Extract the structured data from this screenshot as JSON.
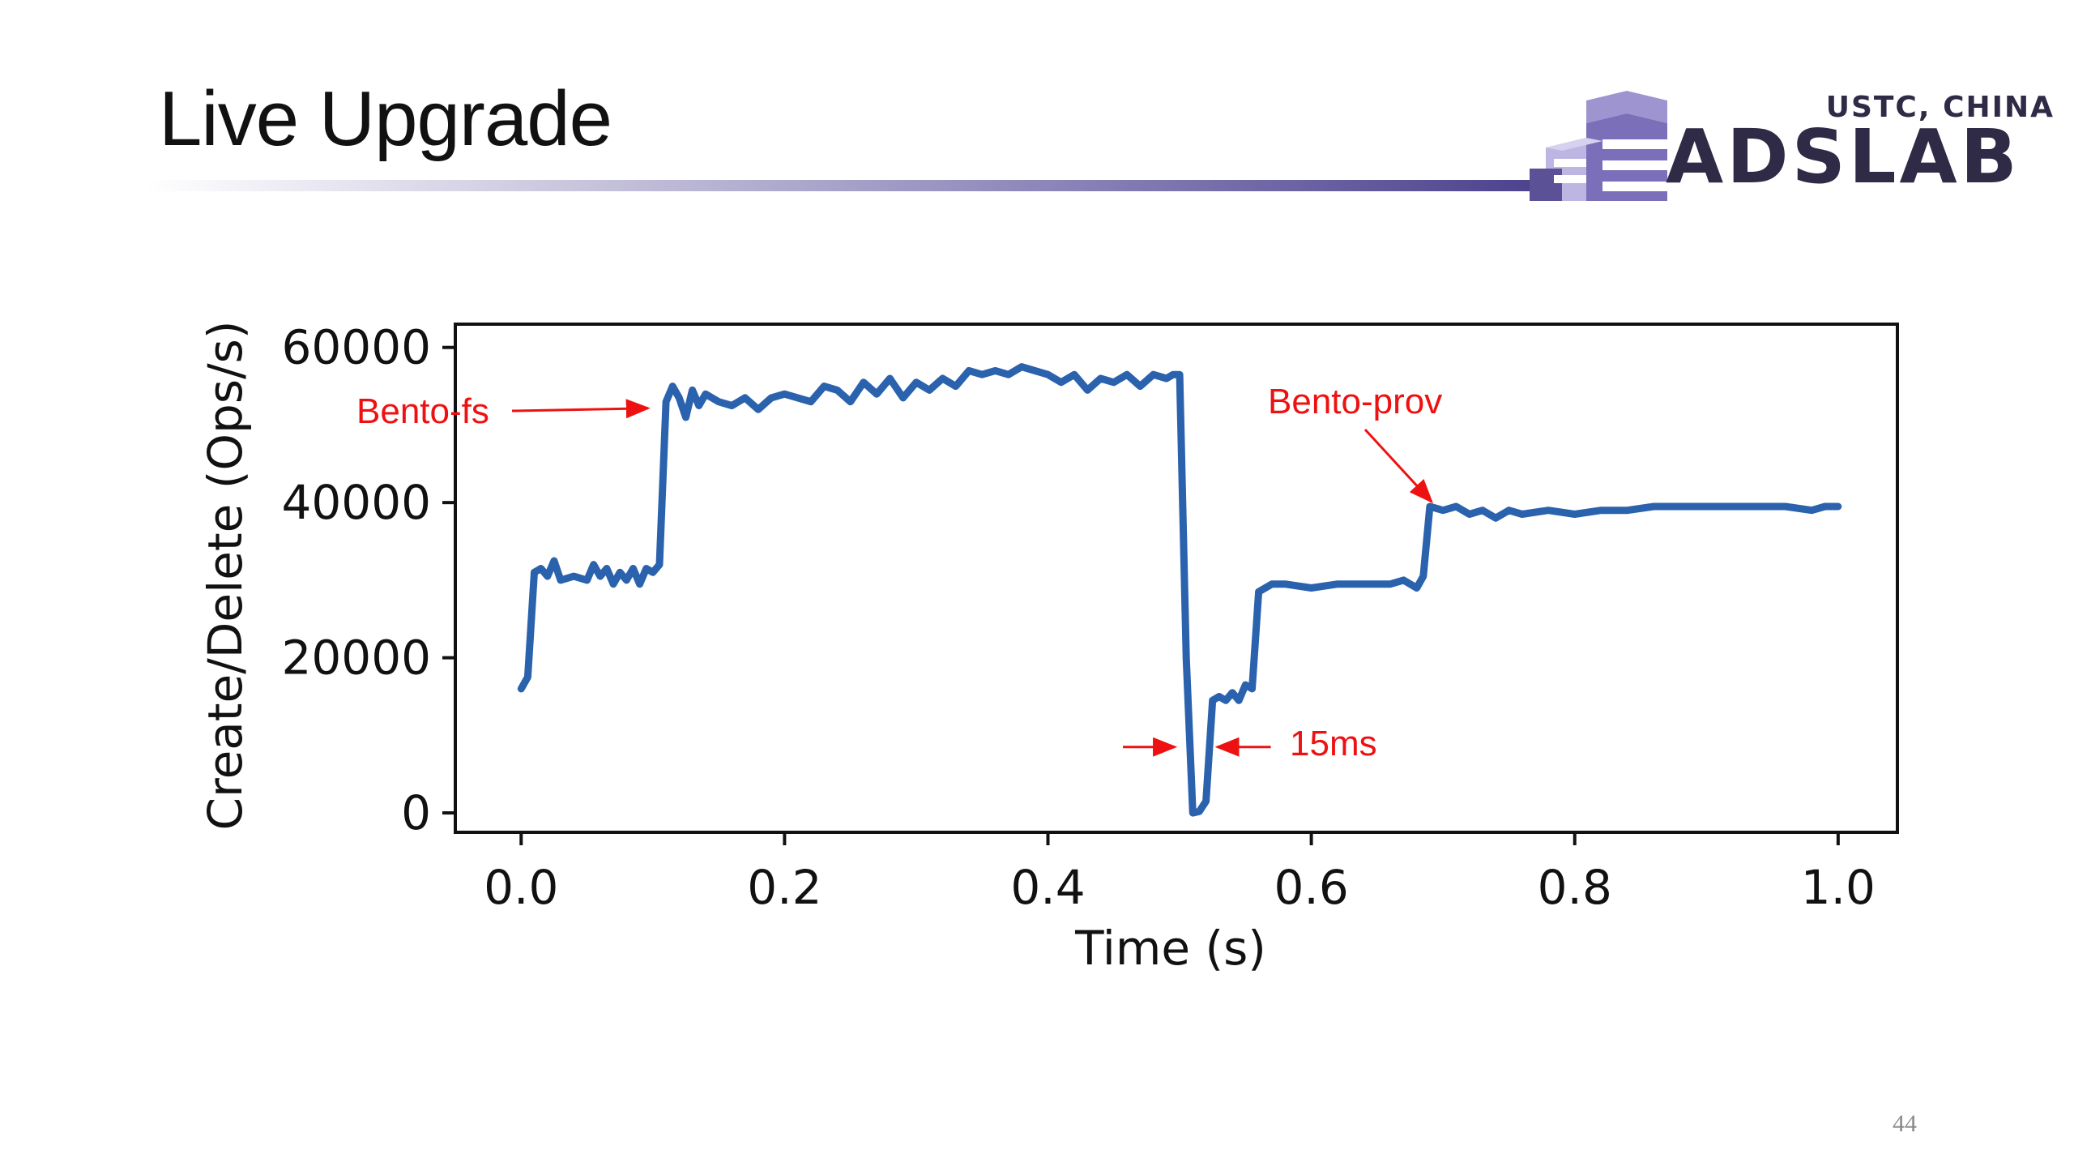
{
  "slide": {
    "title": "Live Upgrade",
    "page_number": "44",
    "logo": {
      "caption": "USTC, CHINA",
      "wordmark": "ADSLAB"
    }
  },
  "colors": {
    "line": "#2b62ad",
    "annotation": "#ee1111",
    "title_rule_end": "#4a3f8c",
    "logo": "#2f2a45"
  },
  "chart_data": {
    "type": "line",
    "title": "",
    "xlabel": "Time (s)",
    "ylabel": "Create/Delete (Ops/s)",
    "xlim": [
      -0.05,
      1.045
    ],
    "ylim": [
      -2500,
      63000
    ],
    "xticks": [
      0.0,
      0.2,
      0.4,
      0.6,
      0.8,
      1.0
    ],
    "xtick_labels": [
      "0.0",
      "0.2",
      "0.4",
      "0.6",
      "0.8",
      "1.0"
    ],
    "yticks": [
      0,
      20000,
      40000,
      60000
    ],
    "ytick_labels": [
      "0",
      "20000",
      "40000",
      "60000"
    ],
    "grid": false,
    "legend": "none",
    "series": [
      {
        "x": [
          0.0,
          0.005,
          0.01,
          0.015,
          0.02,
          0.025,
          0.03,
          0.04,
          0.05,
          0.055,
          0.06,
          0.065,
          0.07,
          0.075,
          0.08,
          0.085,
          0.09,
          0.095,
          0.1,
          0.105,
          0.11,
          0.115,
          0.12,
          0.125,
          0.13,
          0.135,
          0.14,
          0.15,
          0.16,
          0.17,
          0.18,
          0.19,
          0.2,
          0.21,
          0.22,
          0.23,
          0.24,
          0.25,
          0.26,
          0.27,
          0.28,
          0.29,
          0.3,
          0.31,
          0.32,
          0.33,
          0.34,
          0.35,
          0.36,
          0.37,
          0.38,
          0.39,
          0.4,
          0.41,
          0.42,
          0.43,
          0.44,
          0.45,
          0.46,
          0.47,
          0.48,
          0.49,
          0.495,
          0.5,
          0.505,
          0.51,
          0.515,
          0.52,
          0.525,
          0.53,
          0.535,
          0.54,
          0.545,
          0.55,
          0.555,
          0.56,
          0.57,
          0.58,
          0.6,
          0.62,
          0.64,
          0.66,
          0.67,
          0.68,
          0.685,
          0.69,
          0.7,
          0.71,
          0.72,
          0.73,
          0.74,
          0.75,
          0.76,
          0.78,
          0.8,
          0.82,
          0.84,
          0.86,
          0.88,
          0.9,
          0.92,
          0.94,
          0.96,
          0.98,
          0.99,
          1.0
        ],
        "y": [
          16000,
          17500,
          31000,
          31500,
          30500,
          32500,
          30000,
          30500,
          30000,
          32000,
          30500,
          31500,
          29500,
          31000,
          30000,
          31500,
          29500,
          31500,
          31000,
          32000,
          53000,
          55000,
          53500,
          51000,
          54500,
          52500,
          54000,
          53000,
          52500,
          53500,
          52000,
          53500,
          54000,
          53500,
          53000,
          55000,
          54500,
          53000,
          55500,
          54000,
          56000,
          53500,
          55500,
          54500,
          56000,
          55000,
          57000,
          56500,
          57000,
          56500,
          57500,
          57000,
          56500,
          55500,
          56500,
          54500,
          56000,
          55500,
          56500,
          55000,
          56500,
          56000,
          56500,
          56500,
          20000,
          0,
          200,
          1500,
          14500,
          15000,
          14500,
          15500,
          14500,
          16500,
          16000,
          28500,
          29500,
          29500,
          29000,
          29500,
          29500,
          29500,
          30000,
          29000,
          30500,
          39500,
          39000,
          39500,
          38500,
          39000,
          38000,
          39000,
          38500,
          39000,
          38500,
          39000,
          39000,
          39500,
          39500,
          39500,
          39500,
          39500,
          39500,
          39000,
          39500,
          39500
        ]
      }
    ],
    "annotations": [
      {
        "text": "Bento-fs",
        "arrow_to": [
          0.1,
          53000
        ]
      },
      {
        "text": "Bento-prov",
        "arrow_to": [
          0.69,
          39500
        ]
      },
      {
        "text": "15ms",
        "bracket": [
          0.5,
          0.52
        ],
        "y": 8500
      }
    ]
  }
}
